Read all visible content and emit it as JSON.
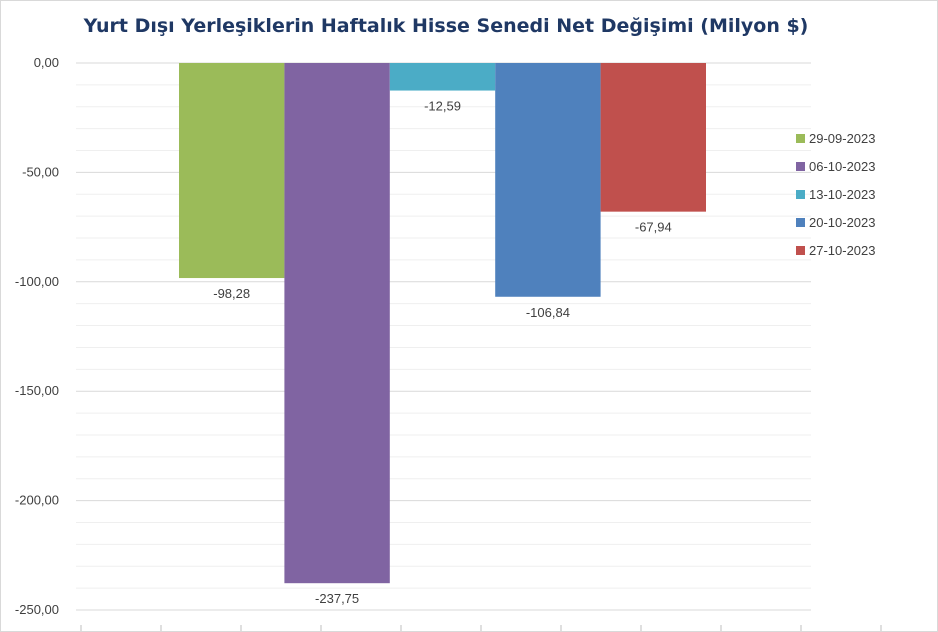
{
  "chart_data": {
    "type": "bar",
    "title": "Yurt Dışı Yerleşiklerin Haftalık Hisse Senedi Net Değişimi (Milyon $)",
    "xlabel": "",
    "ylabel": "",
    "ylim": [
      -250,
      0
    ],
    "yticks": [
      0,
      -50,
      -100,
      -150,
      -200,
      -250
    ],
    "ytick_labels": [
      "0,00",
      "-50,00",
      "-100,00",
      "-150,00",
      "-200,00",
      "-250,00"
    ],
    "grid": true,
    "legend_position": "right",
    "series": [
      {
        "name": "29-09-2023",
        "value": -98.28,
        "label": "-98,28",
        "color": "#9bbb59"
      },
      {
        "name": "06-10-2023",
        "value": -237.75,
        "label": "-237,75",
        "color": "#8064a2"
      },
      {
        "name": "13-10-2023",
        "value": -12.59,
        "label": "-12,59",
        "color": "#4bacc6"
      },
      {
        "name": "20-10-2023",
        "value": -106.84,
        "label": "-106,84",
        "color": "#4f81bd"
      },
      {
        "name": "27-10-2023",
        "value": -67.94,
        "label": "-67,94",
        "color": "#c0504d"
      }
    ]
  }
}
